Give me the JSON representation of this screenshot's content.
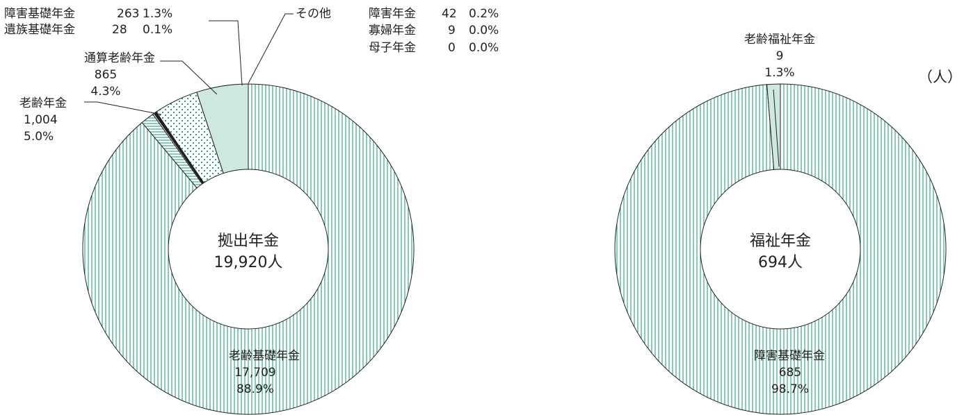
{
  "unit_label": "（人）",
  "colors": {
    "green": "#0e9a6e",
    "mint": "#cde8dd",
    "line": "#231f20"
  },
  "chart_data": [
    {
      "type": "pie",
      "style": "donut",
      "center_title": "拠出年金",
      "center_total": "19,920人",
      "slices": [
        {
          "name": "老齢基礎年金",
          "value": 17709,
          "percent": "88.9%",
          "value_label": "17,709",
          "pattern": "vertical-stripes"
        },
        {
          "name": "障害基礎年金",
          "value": 263,
          "percent": "1.3%",
          "value_label": "263",
          "pattern": "horizontal-stripes"
        },
        {
          "name": "遺族基礎年金",
          "value": 28,
          "percent": "0.1%",
          "value_label": "28",
          "pattern": "white"
        },
        {
          "name": "障害年金",
          "value": 42,
          "percent": "0.2%",
          "value_label": "42",
          "pattern": "black"
        },
        {
          "name": "寡婦年金",
          "value": 9,
          "percent": "0.0%",
          "value_label": "9",
          "pattern": "black"
        },
        {
          "name": "母子年金",
          "value": 0,
          "percent": "0.0%",
          "value_label": "0",
          "pattern": "black"
        },
        {
          "name": "通算老齢年金",
          "value": 865,
          "percent": "4.3%",
          "value_label": "865",
          "pattern": "dots"
        },
        {
          "name": "老齢年金",
          "value": 1004,
          "percent": "5.0%",
          "value_label": "1,004",
          "pattern": "mint"
        }
      ],
      "group_label": "その他"
    },
    {
      "type": "pie",
      "style": "donut",
      "center_title": "福祉年金",
      "center_total": "694人",
      "slices": [
        {
          "name": "障害基礎年金",
          "value": 685,
          "percent": "98.7%",
          "value_label": "685",
          "pattern": "vertical-stripes"
        },
        {
          "name": "老齢福祉年金",
          "value": 9,
          "percent": "1.3%",
          "value_label": "9",
          "pattern": "mint"
        }
      ]
    }
  ]
}
